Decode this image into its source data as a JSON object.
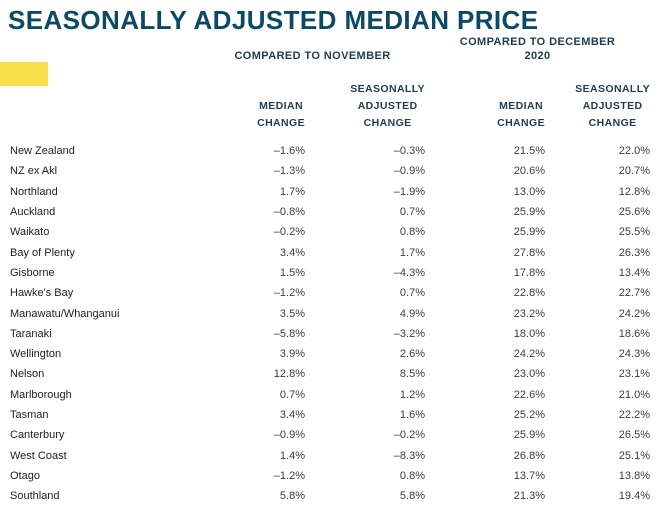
{
  "title": "SEASONALLY ADJUSTED MEDIAN PRICE",
  "colors": {
    "title_teal": "#0c4966",
    "header_navy": "#1e3c52",
    "accent_yellow": "#f8df4b",
    "body_text": "#3d3d3d"
  },
  "chart_data": {
    "type": "table",
    "title": "SEASONALLY ADJUSTED MEDIAN PRICE",
    "group_headers": [
      "COMPARED TO NOVEMBER",
      "COMPARED TO DECEMBER 2020"
    ],
    "columns": [
      "Region",
      "Median Change (vs November)",
      "Seasonally Adjusted Change (vs November)",
      "Median Change (vs December 2020)",
      "Seasonally Adjusted Change (vs December 2020)"
    ],
    "sub_headers_display": [
      "MEDIAN\nCHANGE",
      "SEASONALLY\nADJUSTED\nCHANGE",
      "MEDIAN\nCHANGE",
      "SEASONALLY\nADJUSTED\nCHANGE"
    ],
    "rows": [
      {
        "region": "New Zealand",
        "values": [
          "–1.6%",
          "–0.3%",
          "21.5%",
          "22.0%"
        ]
      },
      {
        "region": "NZ ex Akl",
        "values": [
          "–1.3%",
          "–0.9%",
          "20.6%",
          "20.7%"
        ]
      },
      {
        "region": "Northland",
        "values": [
          "1.7%",
          "–1.9%",
          "13.0%",
          "12.8%"
        ]
      },
      {
        "region": "Auckland",
        "values": [
          "–0.8%",
          "0.7%",
          "25.9%",
          "25.6%"
        ]
      },
      {
        "region": "Waikato",
        "values": [
          "–0.2%",
          "0.8%",
          "25.9%",
          "25.5%"
        ]
      },
      {
        "region": "Bay of Plenty",
        "values": [
          "3.4%",
          "1.7%",
          "27.8%",
          "26.3%"
        ]
      },
      {
        "region": "Gisborne",
        "values": [
          "1.5%",
          "–4.3%",
          "17.8%",
          "13.4%"
        ]
      },
      {
        "region": "Hawke's Bay",
        "values": [
          "–1.2%",
          "0.7%",
          "22.8%",
          "22.7%"
        ]
      },
      {
        "region": "Manawatu/Whanganui",
        "values": [
          "3.5%",
          "4.9%",
          "23.2%",
          "24.2%"
        ]
      },
      {
        "region": "Taranaki",
        "values": [
          "–5.8%",
          "–3.2%",
          "18.0%",
          "18.6%"
        ]
      },
      {
        "region": "Wellington",
        "values": [
          "3.9%",
          "2.6%",
          "24.2%",
          "24.3%"
        ]
      },
      {
        "region": "Nelson",
        "values": [
          "12.8%",
          "8.5%",
          "23.0%",
          "23.1%"
        ]
      },
      {
        "region": "Marlborough",
        "values": [
          "0.7%",
          "1.2%",
          "22.6%",
          "21.0%"
        ]
      },
      {
        "region": "Tasman",
        "values": [
          "3.4%",
          "1.6%",
          "25.2%",
          "22.2%"
        ]
      },
      {
        "region": "Canterbury",
        "values": [
          "–0.9%",
          "–0.2%",
          "25.9%",
          "26.5%"
        ]
      },
      {
        "region": "West Coast",
        "values": [
          "1.4%",
          "–8.3%",
          "26.8%",
          "25.1%"
        ]
      },
      {
        "region": "Otago",
        "values": [
          "–1.2%",
          "0.8%",
          "13.7%",
          "13.8%"
        ]
      },
      {
        "region": "Southland",
        "values": [
          "5.8%",
          "5.8%",
          "21.3%",
          "19.4%"
        ]
      }
    ]
  }
}
